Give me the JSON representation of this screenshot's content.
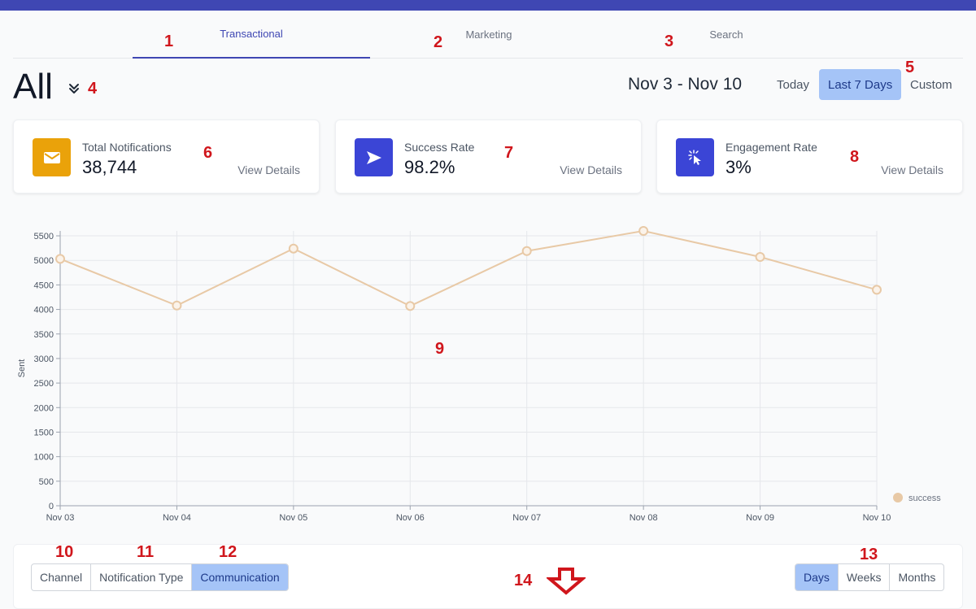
{
  "tabs": [
    {
      "label": "Transactional"
    },
    {
      "label": "Marketing"
    },
    {
      "label": "Search"
    }
  ],
  "filter": {
    "title": "All",
    "icon": "chevron-double-down-icon"
  },
  "date_range": {
    "label": "Nov 3 - Nov 10",
    "options": [
      "Today",
      "Last 7 Days",
      "Custom"
    ],
    "selected": "Last 7 Days"
  },
  "cards": [
    {
      "label": "Total Notifications",
      "value": "38,744",
      "link": "View Details",
      "icon": "envelope-icon",
      "color": "#eaa20a"
    },
    {
      "label": "Success Rate",
      "value": "98.2%",
      "link": "View Details",
      "icon": "send-icon",
      "color": "#3b45d6"
    },
    {
      "label": "Engagement Rate",
      "value": "3%",
      "link": "View Details",
      "icon": "cursor-click-icon",
      "color": "#3b45d6"
    }
  ],
  "chart_data": {
    "type": "line",
    "x": [
      "Nov 03",
      "Nov 04",
      "Nov 05",
      "Nov 06",
      "Nov 07",
      "Nov 08",
      "Nov 09",
      "Nov 10"
    ],
    "series": [
      {
        "name": "success",
        "values": [
          5030,
          4080,
          5240,
          4070,
          5190,
          5600,
          5070,
          4400
        ],
        "color": "#e8c9a6"
      }
    ],
    "ylabel": "Sent",
    "xlabel": "",
    "ylim": [
      0,
      5600
    ],
    "yticks": [
      0,
      500,
      1000,
      1500,
      2000,
      2500,
      3000,
      3500,
      4000,
      4500,
      5000,
      5500
    ],
    "grid": true,
    "legend": "bottom-right"
  },
  "group_by": {
    "options": [
      "Channel",
      "Notification Type",
      "Communication"
    ],
    "selected": "Communication"
  },
  "period": {
    "options": [
      "Days",
      "Weeks",
      "Months"
    ],
    "selected": "Days"
  },
  "annotations": [
    "1",
    "2",
    "3",
    "4",
    "5",
    "6",
    "7",
    "8",
    "9",
    "10",
    "11",
    "12",
    "13",
    "14"
  ],
  "colors": {
    "brand": "#3f47b3",
    "active_bg": "#a5c4f7",
    "annotation": "#d0161c"
  }
}
